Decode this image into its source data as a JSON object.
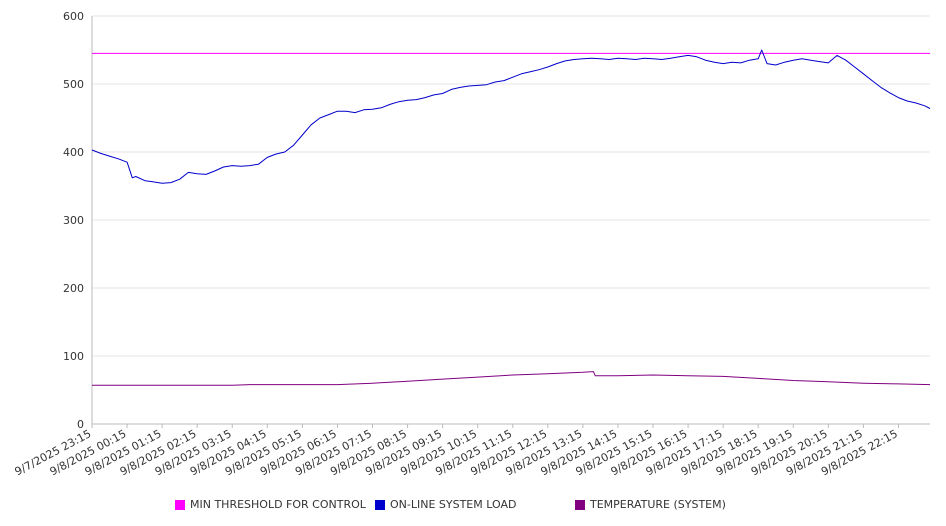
{
  "chart_data": {
    "type": "line",
    "ylim": [
      0,
      600
    ],
    "y_ticks": [
      0,
      100,
      200,
      300,
      400,
      500,
      600
    ],
    "grid": true,
    "legend_position": "bottom",
    "x_tick_labels": [
      "9/7/2025 23:15",
      "9/8/2025 00:15",
      "9/8/2025 01:15",
      "9/8/2025 02:15",
      "9/8/2025 03:15",
      "9/8/2025 04:15",
      "9/8/2025 05:15",
      "9/8/2025 06:15",
      "9/8/2025 07:15",
      "9/8/2025 08:15",
      "9/8/2025 09:15",
      "9/8/2025 10:15",
      "9/8/2025 11:15",
      "9/8/2025 12:15",
      "9/8/2025 13:15",
      "9/8/2025 14:15",
      "9/8/2025 15:15",
      "9/8/2025 16:15",
      "9/8/2025 17:15",
      "9/8/2025 18:15",
      "9/8/2025 19:15",
      "9/8/2025 20:15",
      "9/8/2025 21:15",
      "9/8/2025 22:15"
    ],
    "x_hours": [
      0,
      1,
      2,
      3,
      4,
      5,
      6,
      7,
      8,
      9,
      10,
      11,
      12,
      13,
      14,
      15,
      16,
      17,
      18,
      19,
      20,
      21,
      22,
      23
    ],
    "x_range_hours": [
      0,
      23.9
    ],
    "series": [
      {
        "name": "MIN THRESHOLD FOR CONTROL",
        "color": "#ff00ff",
        "x": [
          0,
          23.9
        ],
        "values": [
          545,
          545
        ]
      },
      {
        "name": "ON-LINE SYSTEM LOAD",
        "color": "#0000cc",
        "x": [
          0,
          0.25,
          0.5,
          0.75,
          1.0,
          1.15,
          1.25,
          1.5,
          1.75,
          2.0,
          2.25,
          2.5,
          2.75,
          3.0,
          3.25,
          3.5,
          3.75,
          4.0,
          4.25,
          4.5,
          4.75,
          5.0,
          5.25,
          5.5,
          5.75,
          6.0,
          6.25,
          6.5,
          6.75,
          7.0,
          7.25,
          7.5,
          7.75,
          8.0,
          8.25,
          8.5,
          8.75,
          9.0,
          9.25,
          9.5,
          9.75,
          10.0,
          10.25,
          10.5,
          10.75,
          11.0,
          11.25,
          11.5,
          11.75,
          12.0,
          12.25,
          12.5,
          12.75,
          13.0,
          13.25,
          13.5,
          13.75,
          14.0,
          14.25,
          14.5,
          14.75,
          15.0,
          15.25,
          15.5,
          15.75,
          16.0,
          16.25,
          16.5,
          16.75,
          17.0,
          17.25,
          17.5,
          17.75,
          18.0,
          18.25,
          18.5,
          18.75,
          19.0,
          19.1,
          19.25,
          19.5,
          19.75,
          20.0,
          20.25,
          20.5,
          20.75,
          21.0,
          21.25,
          21.5,
          21.75,
          22.0,
          22.25,
          22.5,
          22.75,
          23.0,
          23.25,
          23.5,
          23.75,
          23.9
        ],
        "values": [
          403,
          398,
          394,
          390,
          385,
          362,
          364,
          358,
          356,
          354,
          355,
          360,
          370,
          368,
          367,
          372,
          378,
          380,
          379,
          380,
          382,
          392,
          397,
          400,
          410,
          425,
          440,
          450,
          455,
          460,
          460,
          458,
          462,
          463,
          465,
          470,
          474,
          476,
          477,
          480,
          484,
          486,
          492,
          495,
          497,
          498,
          499,
          503,
          505,
          510,
          515,
          518,
          521,
          525,
          530,
          534,
          536,
          537,
          538,
          537,
          536,
          538,
          537,
          536,
          538,
          537,
          536,
          538,
          540,
          542,
          540,
          535,
          532,
          530,
          532,
          531,
          535,
          537,
          550,
          530,
          528,
          532,
          535,
          537,
          535,
          533,
          531,
          542,
          535,
          525,
          515,
          505,
          495,
          487,
          480,
          475,
          472,
          468,
          464
        ]
      },
      {
        "name": "TEMPERATURE (SYSTEM)",
        "color": "#800080",
        "x": [
          0,
          1,
          2,
          3,
          4,
          4.5,
          5,
          6,
          7,
          8,
          9,
          10,
          11,
          12,
          13,
          14,
          14.3,
          14.35,
          15,
          16,
          17,
          18,
          19,
          20,
          21,
          22,
          23,
          23.9
        ],
        "values": [
          57,
          57,
          57,
          57,
          57,
          58,
          58,
          58,
          58,
          60,
          63,
          66,
          69,
          72,
          74,
          76,
          77,
          71,
          71,
          72,
          71,
          70,
          67,
          64,
          62,
          60,
          59,
          58
        ]
      }
    ]
  }
}
